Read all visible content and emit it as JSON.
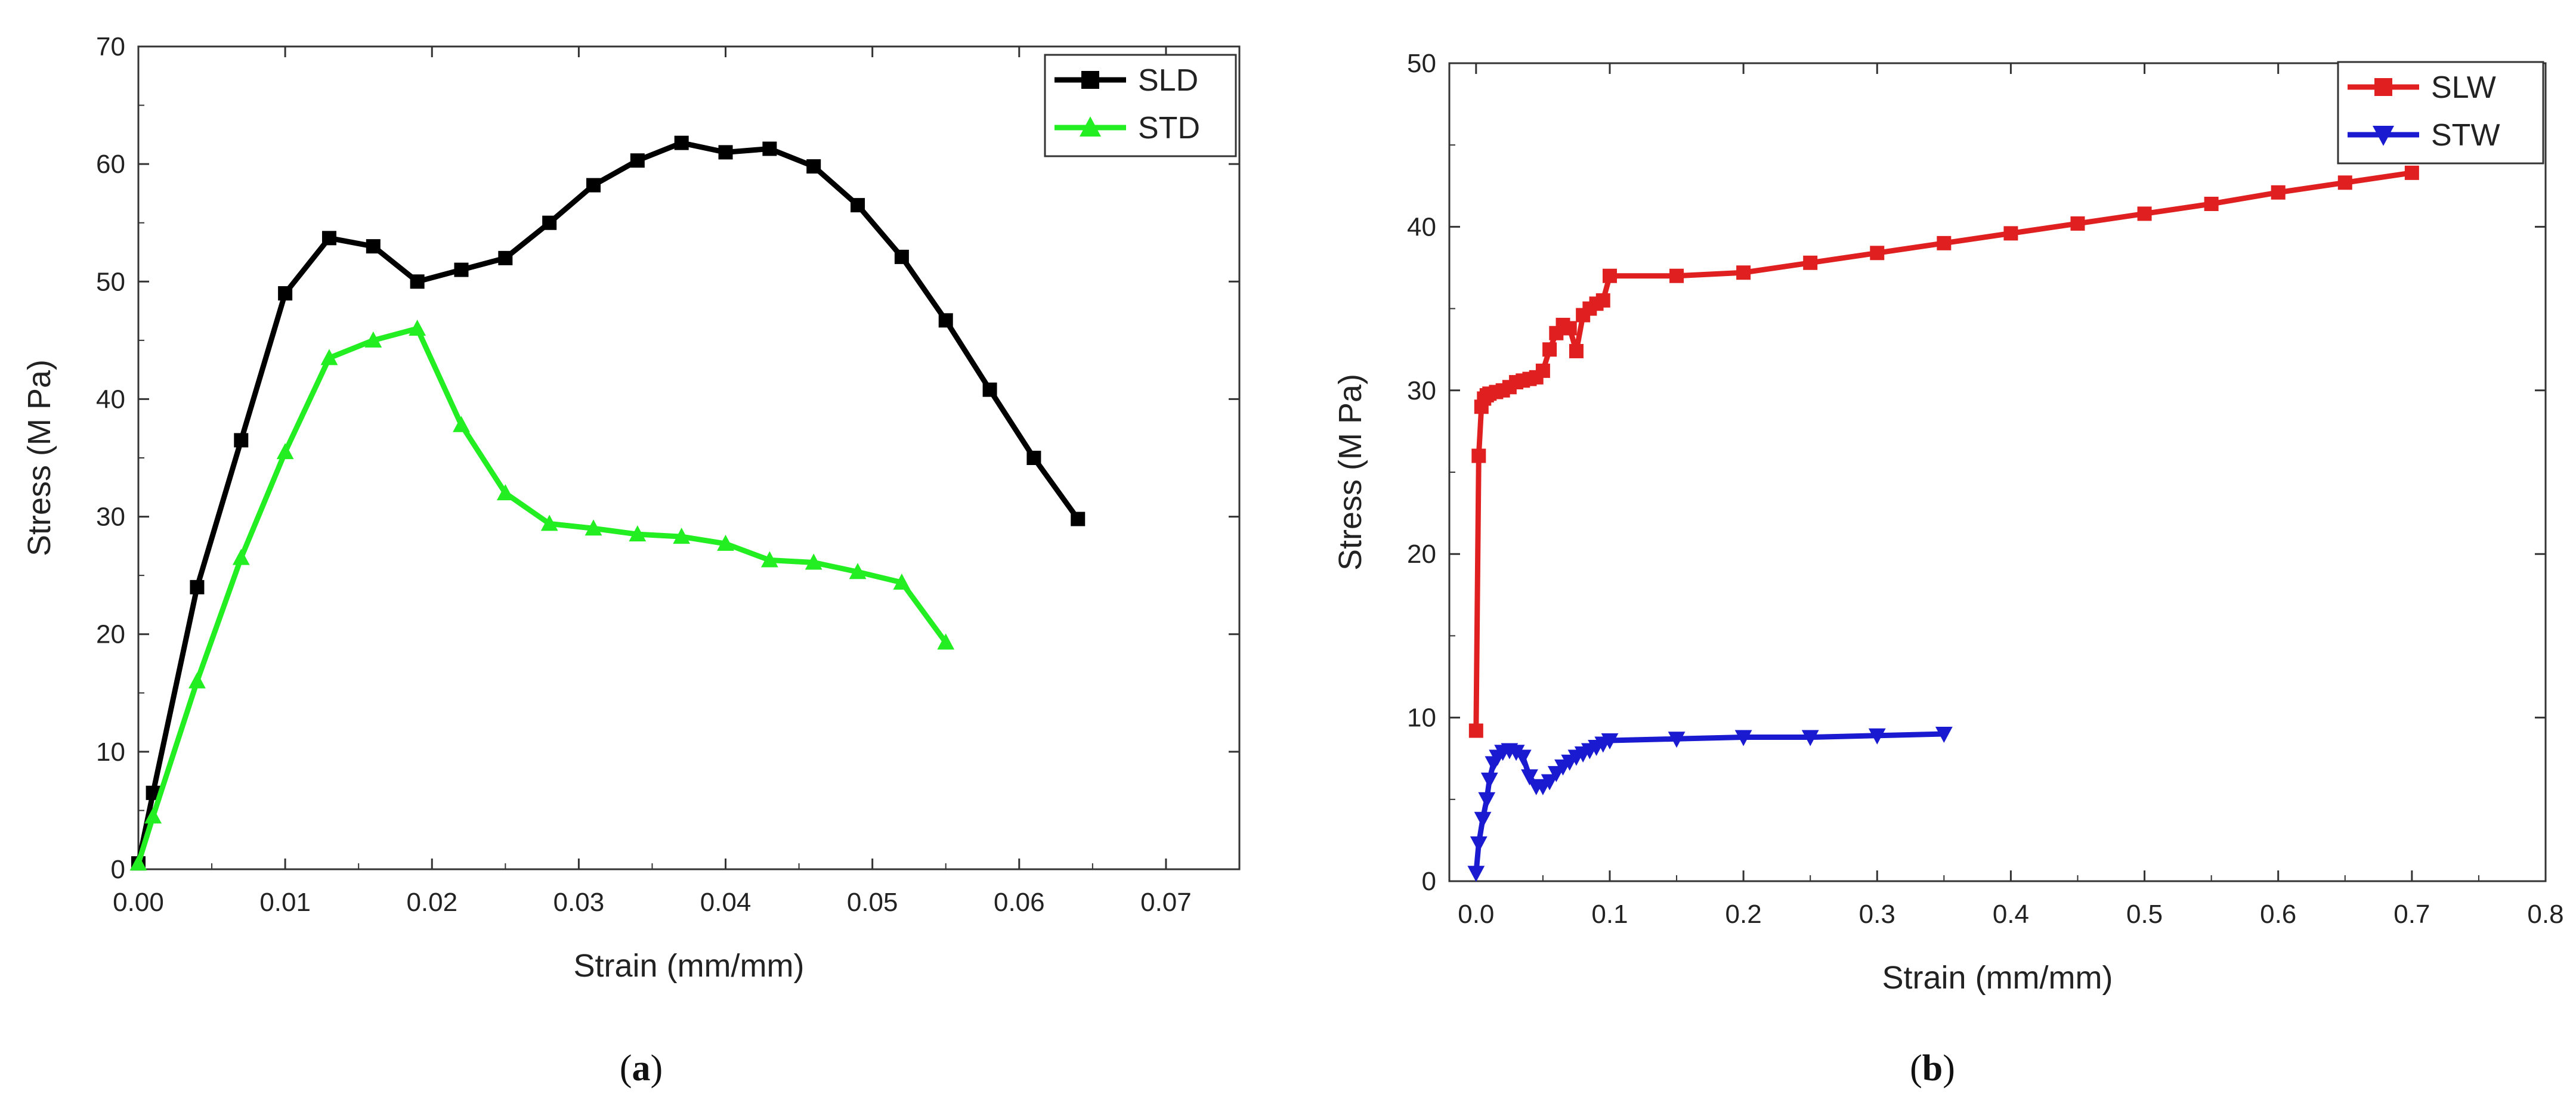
{
  "chart_data": [
    {
      "panel": "a",
      "type": "line",
      "xlabel": "Strain (mm/mm)",
      "ylabel": "Stress (M Pa)",
      "xlim": [
        0,
        0.075
      ],
      "ylim": [
        0,
        70
      ],
      "xticks": [
        0.0,
        0.01,
        0.02,
        0.03,
        0.04,
        0.05,
        0.06,
        0.07
      ],
      "xtick_labels": [
        "0.00",
        "0.01",
        "0.02",
        "0.03",
        "0.04",
        "0.05",
        "0.06",
        "0.07"
      ],
      "yticks": [
        0,
        10,
        20,
        30,
        40,
        50,
        60,
        70
      ],
      "ytick_labels": [
        "0",
        "10",
        "20",
        "30",
        "40",
        "50",
        "60",
        "70"
      ],
      "legend_position": "top-right",
      "series": [
        {
          "name": "SLD",
          "color": "#000000",
          "marker": "square",
          "x": [
            0,
            0.001,
            0.004,
            0.007,
            0.01,
            0.013,
            0.016,
            0.019,
            0.022,
            0.025,
            0.028,
            0.031,
            0.034,
            0.037,
            0.04,
            0.043,
            0.046,
            0.049,
            0.052,
            0.055,
            0.058,
            0.061,
            0.064
          ],
          "y": [
            0.5,
            6.5,
            24,
            36.5,
            49,
            53.7,
            53,
            50,
            51,
            52,
            55,
            58.2,
            60.3,
            61.8,
            61,
            61.3,
            59.8,
            56.5,
            52.1,
            46.7,
            40.8,
            35,
            29.8
          ]
        },
        {
          "name": "STD",
          "color": "#22ee22",
          "marker": "triangle-up",
          "x": [
            0,
            0.001,
            0.004,
            0.007,
            0.01,
            0.013,
            0.016,
            0.019,
            0.022,
            0.025,
            0.028,
            0.031,
            0.034,
            0.037,
            0.04,
            0.043,
            0.046,
            0.049,
            0.052,
            0.055
          ],
          "y": [
            0.5,
            4.5,
            16,
            26.5,
            35.5,
            43.5,
            45,
            46,
            37.8,
            32,
            29.4,
            29,
            28.5,
            28.3,
            27.7,
            26.3,
            26.1,
            25.3,
            24.4,
            19.3
          ]
        }
      ]
    },
    {
      "panel": "b",
      "type": "line",
      "xlabel": "Strain (mm/mm)",
      "ylabel": "Stress (M Pa)",
      "xlim": [
        -0.02,
        0.8
      ],
      "ylim": [
        0,
        50
      ],
      "xticks": [
        0.0,
        0.1,
        0.2,
        0.3,
        0.4,
        0.5,
        0.6,
        0.7,
        0.8
      ],
      "xtick_labels": [
        "0.0",
        "0.1",
        "0.2",
        "0.3",
        "0.4",
        "0.5",
        "0.6",
        "0.7",
        "0.8"
      ],
      "yticks": [
        0,
        10,
        20,
        30,
        40,
        50
      ],
      "ytick_labels": [
        "0",
        "10",
        "20",
        "30",
        "40",
        "50"
      ],
      "legend_position": "top-right",
      "series": [
        {
          "name": "SLW",
          "color": "#e02020",
          "marker": "square",
          "x": [
            0,
            0.002,
            0.004,
            0.006,
            0.008,
            0.01,
            0.015,
            0.02,
            0.025,
            0.03,
            0.035,
            0.04,
            0.045,
            0.05,
            0.055,
            0.06,
            0.065,
            0.07,
            0.075,
            0.08,
            0.085,
            0.09,
            0.095,
            0.1,
            0.15,
            0.2,
            0.25,
            0.3,
            0.35,
            0.4,
            0.45,
            0.5,
            0.55,
            0.6,
            0.65,
            0.7
          ],
          "y": [
            9.2,
            26,
            29,
            29.5,
            29.7,
            29.8,
            29.9,
            30,
            30.2,
            30.5,
            30.6,
            30.7,
            30.8,
            31.2,
            32.5,
            33.5,
            34,
            33.8,
            32.4,
            34.6,
            35,
            35.3,
            35.5,
            37,
            37,
            37.2,
            37.8,
            38.4,
            39,
            39.6,
            40.2,
            40.8,
            41.4,
            42.1,
            42.7,
            43.3
          ]
        },
        {
          "name": "STW",
          "color": "#1a1ad0",
          "marker": "triangle-down",
          "x": [
            0,
            0.002,
            0.005,
            0.008,
            0.01,
            0.013,
            0.016,
            0.02,
            0.025,
            0.03,
            0.035,
            0.04,
            0.045,
            0.05,
            0.055,
            0.06,
            0.065,
            0.07,
            0.075,
            0.08,
            0.085,
            0.09,
            0.095,
            0.1,
            0.15,
            0.2,
            0.25,
            0.3,
            0.35
          ],
          "y": [
            0.5,
            2.3,
            3.8,
            5,
            6.2,
            7.2,
            7.6,
            7.9,
            8,
            7.9,
            7.6,
            6.4,
            5.8,
            5.8,
            6.1,
            6.6,
            7,
            7.3,
            7.6,
            7.8,
            8,
            8.2,
            8.4,
            8.6,
            8.7,
            8.8,
            8.8,
            8.9,
            9
          ]
        }
      ]
    }
  ],
  "panel_labels": [
    {
      "open": "(",
      "letter": "a",
      "close": ")"
    },
    {
      "open": "(",
      "letter": "b",
      "close": ")"
    }
  ]
}
